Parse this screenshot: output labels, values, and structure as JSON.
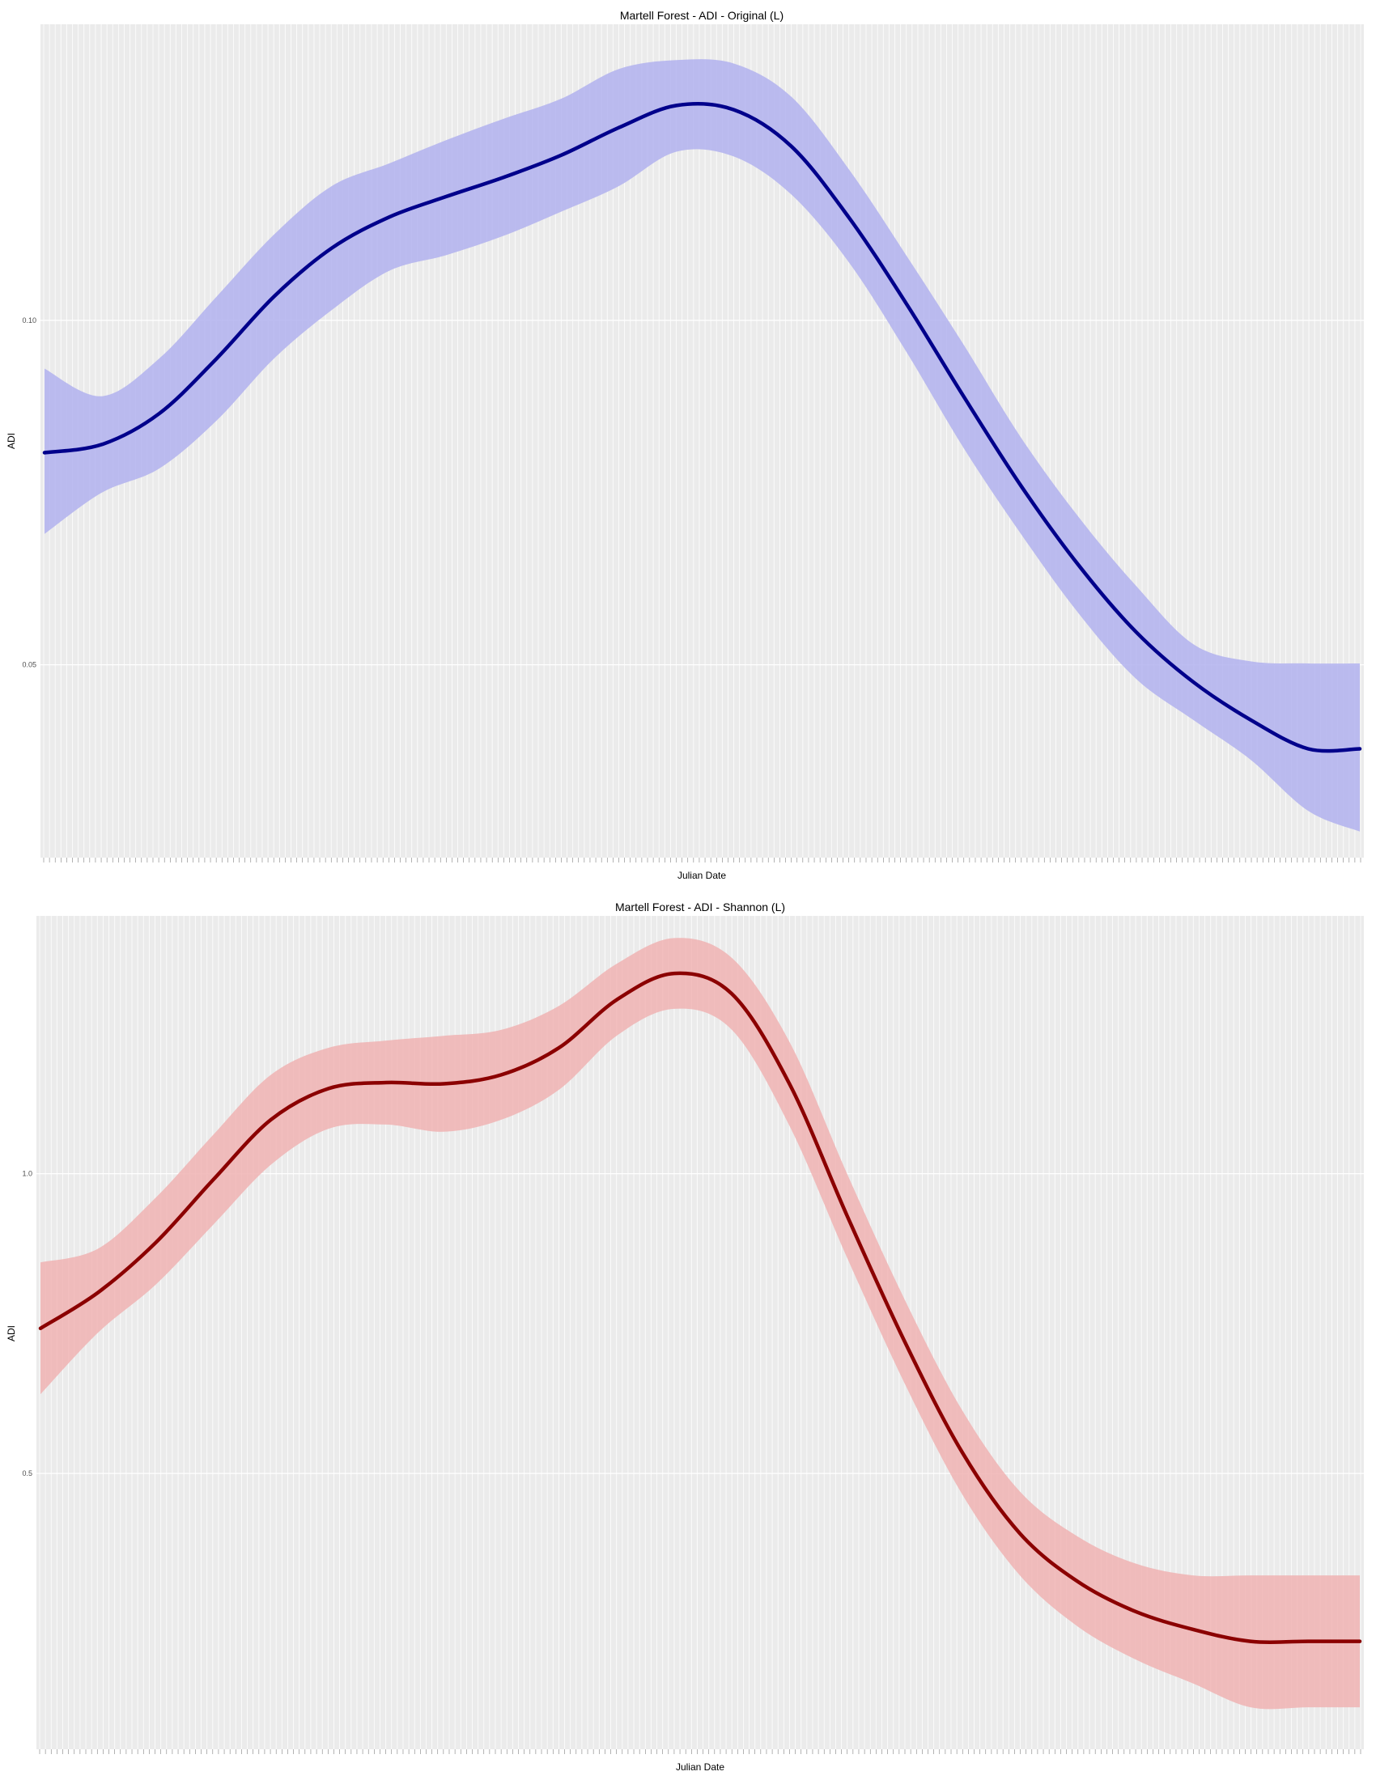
{
  "chart_data": [
    {
      "type": "line",
      "title": "Martell Forest - ADI - Original (L)",
      "xlabel": "Julian Date",
      "ylabel": "ADI",
      "xlim": [
        0,
        229
      ],
      "ylim": [
        0.022,
        0.143
      ],
      "yticks": [
        0.05,
        0.1
      ],
      "ytick_labels": [
        "0.05",
        "0.10"
      ],
      "grid": true,
      "line_color": "#00008b",
      "band_color": "#b2b2ee",
      "series": [
        {
          "x": [
            0,
            10,
            20,
            30,
            40,
            50,
            60,
            70,
            80,
            90,
            100,
            110,
            120,
            130,
            140,
            150,
            160,
            170,
            180,
            190,
            200,
            210,
            220,
            229
          ],
          "values": [
            0.0808,
            0.082,
            0.0865,
            0.0945,
            0.1035,
            0.1105,
            0.115,
            0.118,
            0.1208,
            0.124,
            0.128,
            0.1312,
            0.1306,
            0.1253,
            0.115,
            0.1025,
            0.089,
            0.076,
            0.0645,
            0.0548,
            0.0475,
            0.042,
            0.0378,
            0.0378
          ],
          "lower": [
            0.069,
            0.075,
            0.0785,
            0.0855,
            0.0945,
            0.1015,
            0.1072,
            0.1095,
            0.1123,
            0.1158,
            0.1195,
            0.1245,
            0.1238,
            0.1183,
            0.1085,
            0.0955,
            0.0815,
            0.069,
            0.0575,
            0.048,
            0.042,
            0.0362,
            0.0288,
            0.0258
          ],
          "upper": [
            0.093,
            0.089,
            0.0945,
            0.1035,
            0.1125,
            0.1195,
            0.1228,
            0.1262,
            0.1293,
            0.1322,
            0.1365,
            0.1378,
            0.1373,
            0.1325,
            0.122,
            0.1095,
            0.0965,
            0.083,
            0.0715,
            0.0615,
            0.053,
            0.0505,
            0.0502,
            0.0502
          ]
        }
      ]
    },
    {
      "type": "line",
      "title": "Martell Forest - ADI - Shannon (L)",
      "xlabel": "Julian Date",
      "ylabel": "ADI",
      "xlim": [
        0,
        229
      ],
      "ylim": [
        0.04,
        1.43
      ],
      "yticks": [
        0.5,
        1.0
      ],
      "ytick_labels": [
        "0.5",
        "1.0"
      ],
      "grid": true,
      "line_color": "#8b0000",
      "band_color": "#f0b3b3",
      "series": [
        {
          "x": [
            0,
            10,
            20,
            30,
            40,
            50,
            60,
            70,
            80,
            90,
            100,
            110,
            120,
            130,
            140,
            150,
            160,
            170,
            180,
            190,
            200,
            210,
            220,
            229
          ],
          "values": [
            0.742,
            0.802,
            0.885,
            0.99,
            1.09,
            1.142,
            1.152,
            1.15,
            1.165,
            1.21,
            1.29,
            1.334,
            1.3,
            1.15,
            0.93,
            0.72,
            0.535,
            0.4,
            0.32,
            0.27,
            0.24,
            0.22,
            0.22,
            0.22
          ],
          "lower": [
            0.632,
            0.735,
            0.815,
            0.915,
            1.015,
            1.075,
            1.082,
            1.07,
            1.09,
            1.14,
            1.23,
            1.275,
            1.24,
            1.08,
            0.86,
            0.65,
            0.465,
            0.33,
            0.245,
            0.19,
            0.15,
            0.11,
            0.11,
            0.11
          ],
          "upper": [
            0.852,
            0.875,
            0.96,
            1.065,
            1.165,
            1.21,
            1.222,
            1.23,
            1.24,
            1.28,
            1.35,
            1.393,
            1.36,
            1.22,
            1.0,
            0.79,
            0.605,
            0.47,
            0.395,
            0.35,
            0.33,
            0.33,
            0.33,
            0.33
          ]
        }
      ]
    }
  ]
}
